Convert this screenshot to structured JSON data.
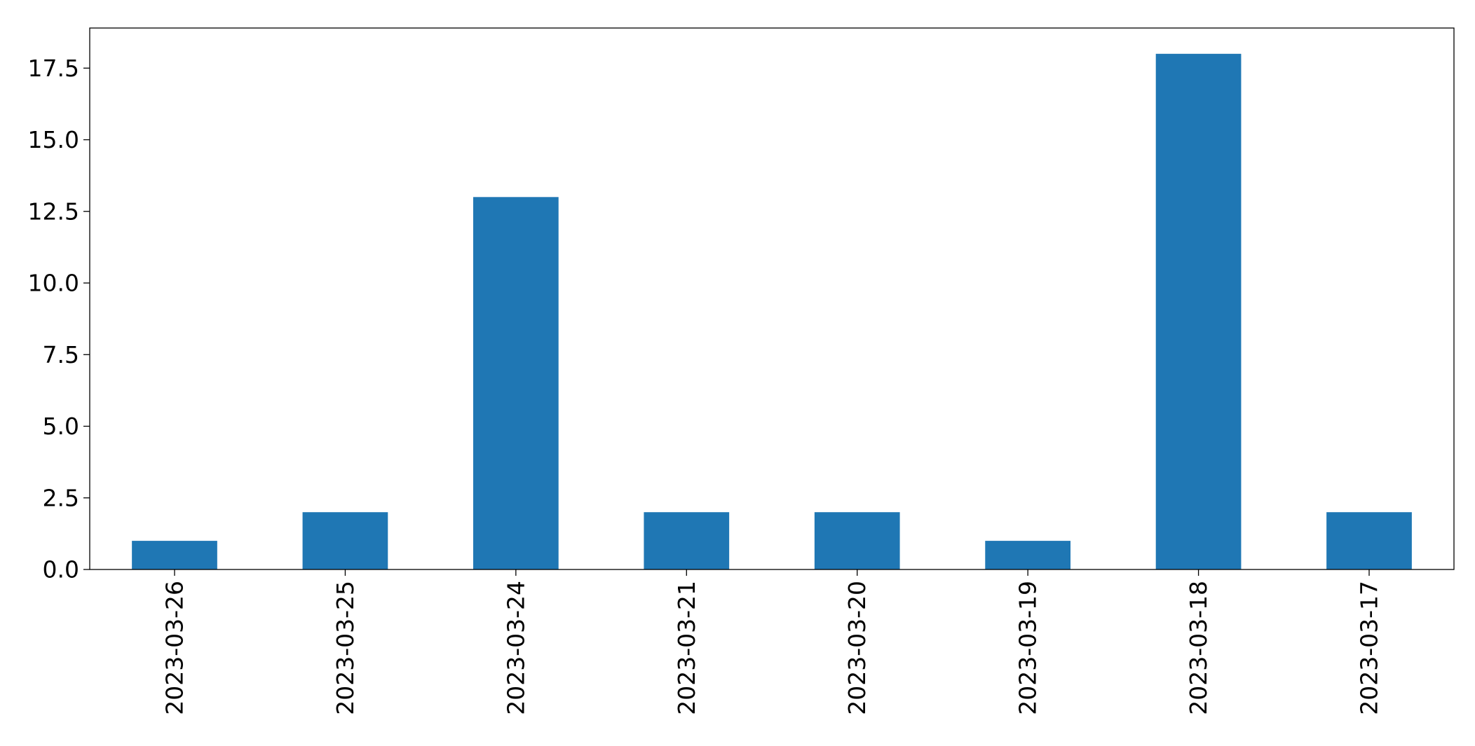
{
  "chart_data": {
    "type": "bar",
    "title": "",
    "xlabel": "",
    "ylabel": "",
    "categories": [
      "2023-03-26",
      "2023-03-25",
      "2023-03-24",
      "2023-03-21",
      "2023-03-20",
      "2023-03-19",
      "2023-03-18",
      "2023-03-17"
    ],
    "values": [
      1,
      2,
      13,
      2,
      2,
      1,
      18,
      2
    ],
    "ylim": [
      0,
      18.9
    ],
    "yticks": [
      0.0,
      2.5,
      5.0,
      7.5,
      10.0,
      12.5,
      15.0,
      17.5
    ],
    "ytick_labels": [
      "0.0",
      "2.5",
      "5.0",
      "7.5",
      "10.0",
      "12.5",
      "15.0",
      "17.5"
    ],
    "grid": false,
    "legend": "none",
    "bar_color": "#1f77b4"
  }
}
